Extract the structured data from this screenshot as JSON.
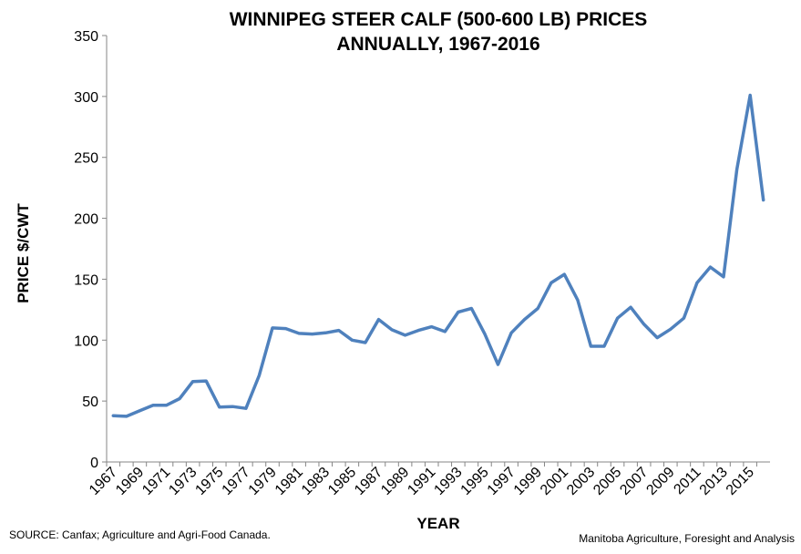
{
  "chart_data": {
    "type": "line",
    "title": "WINNIPEG STEER CALF (500-600 LB) PRICES",
    "subtitle": "ANNUALLY, 1967-2016",
    "xlabel": "YEAR",
    "ylabel": "PRICE $/CWT",
    "ylim": [
      0,
      350
    ],
    "yticks": [
      "0",
      "50",
      "100",
      "150",
      "200",
      "250",
      "300",
      "350"
    ],
    "grid": false,
    "legend": "none",
    "line_color": "#4f81bd",
    "x": [
      1967,
      1968,
      1969,
      1970,
      1971,
      1972,
      1973,
      1974,
      1975,
      1976,
      1977,
      1978,
      1979,
      1980,
      1981,
      1982,
      1983,
      1984,
      1985,
      1986,
      1987,
      1988,
      1989,
      1990,
      1991,
      1992,
      1993,
      1994,
      1995,
      1996,
      1997,
      1998,
      1999,
      2000,
      2001,
      2002,
      2003,
      2004,
      2005,
      2006,
      2007,
      2008,
      2009,
      2010,
      2011,
      2012,
      2013,
      2014,
      2015,
      2016
    ],
    "xticks": [
      "1967",
      "1969",
      "1971",
      "1973",
      "1975",
      "1977",
      "1979",
      "1981",
      "1983",
      "1985",
      "1987",
      "1989",
      "1991",
      "1993",
      "1995",
      "1997",
      "1999",
      "2001",
      "2003",
      "2005",
      "2007",
      "2009",
      "2011",
      "2013",
      "2015"
    ],
    "values": [
      38,
      37.5,
      42,
      46.5,
      46.5,
      52,
      66,
      66.5,
      45,
      45.5,
      44,
      71,
      110,
      109.5,
      105.5,
      105,
      106,
      108,
      100,
      98,
      117,
      108.5,
      104,
      108,
      111,
      107,
      123,
      126,
      105,
      80,
      106,
      117,
      126,
      147,
      154,
      133,
      95,
      95,
      118,
      127,
      113,
      102,
      109,
      118,
      147,
      160,
      152,
      240,
      301,
      215
    ]
  },
  "footer": {
    "source": "SOURCE:  Canfax;  Agriculture and Agri-Food Canada.",
    "credit": "Manitoba Agriculture, Foresight and Analysis"
  }
}
